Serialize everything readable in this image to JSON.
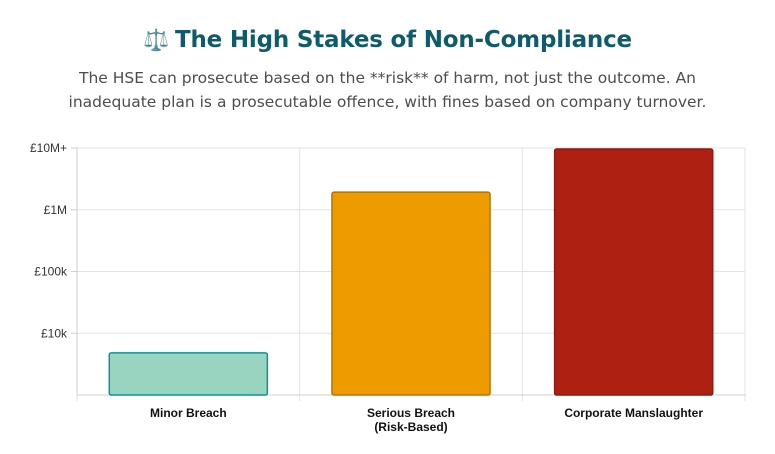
{
  "header": {
    "icon": "balance-scale-icon",
    "icon_glyph": "⚖️",
    "title": "The High Stakes of Non-Compliance",
    "subtitle": "The HSE can prosecute based on the **risk** of harm, not just the outcome. An inadequate plan is a prosecutable offence, with fines based on company turnover."
  },
  "chart_data": {
    "type": "bar",
    "title": "",
    "xlabel": "",
    "ylabel": "",
    "yscale": "log",
    "ylim": [
      1000,
      10000000
    ],
    "yticks": [
      {
        "value": 10000,
        "label": "£10k"
      },
      {
        "value": 100000,
        "label": "£100k"
      },
      {
        "value": 1000000,
        "label": "£1M"
      },
      {
        "value": 10000000,
        "label": "£10M+"
      }
    ],
    "categories": [
      [
        "Minor Breach"
      ],
      [
        "Serious Breach",
        "(Risk-Based)"
      ],
      [
        "Corporate Manslaughter"
      ]
    ],
    "values": [
      5000,
      2000000,
      10000000
    ],
    "colors": [
      "#98d4bf",
      "#ee9b00",
      "#ae2012"
    ],
    "border_colors": [
      "#0a9396",
      "#b87300",
      "#8c1a0e"
    ],
    "grid": true,
    "legend": "none"
  }
}
